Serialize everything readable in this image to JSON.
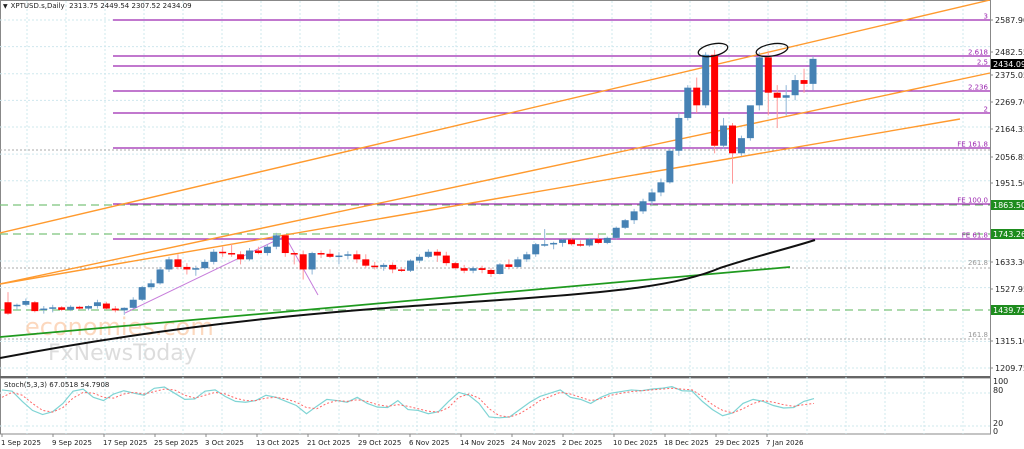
{
  "header": {
    "symbol": "XPTUSD.s,Daily",
    "ohlc": "2313.75 2449.54 2307.52 2434.09"
  },
  "stoch": {
    "label": "Stoch(5,3,3) 67.0518 54.7908",
    "levels": [
      "100",
      "80",
      "20",
      "0"
    ]
  },
  "watermark": {
    "line1": "economies.com",
    "line2": "FxNewsToday"
  },
  "colors": {
    "bull": "#4682b4",
    "bear": "#ff0000",
    "fib": "#9c27b0",
    "channel": "#ff9a2e",
    "green_trend": "#1f9a1f",
    "ma": "#111111",
    "tag_bg": "#1e8c1e",
    "price_tag_bg": "#000000",
    "stoch_main": "#7fd4d4",
    "stoch_signal": "#ff6666"
  },
  "chart_data": {
    "type": "candlestick",
    "title": "XPTUSD.s,Daily 2313.75 2449.54 2307.52 2434.09",
    "y_axis_ticks": [
      "2587.90",
      "2482.55",
      "2375.05",
      "2269.70",
      "2164.35",
      "2056.85",
      "1951.50",
      "1633.30",
      "1527.95",
      "1315.10",
      "1209.75"
    ],
    "price_tags": [
      {
        "value": "2434.09",
        "kind": "current"
      },
      {
        "value": "1863.50",
        "kind": "level"
      },
      {
        "value": "1743.26",
        "kind": "level"
      },
      {
        "value": "1439.72",
        "kind": "level"
      }
    ],
    "fib_levels": [
      {
        "label": "3",
        "price": 2600
      },
      {
        "label": "2.618",
        "price": 2470
      },
      {
        "label": "2.5",
        "price": 2434
      },
      {
        "label": "2.236",
        "price": 2330
      },
      {
        "label": "2",
        "price": 2250
      },
      {
        "label": "FE 161.8",
        "price": 2115
      },
      {
        "label": "FE 100.0",
        "price": 1895
      },
      {
        "label": "FE 61.8",
        "price": 1757
      }
    ],
    "grey_levels": [
      {
        "label": "261.8",
        "price": 1668
      },
      {
        "label": "161.8",
        "price": 1307
      }
    ],
    "x_labels": [
      "1 Sep 2025",
      "9 Sep 2025",
      "17 Sep 2025",
      "25 Sep 2025",
      "3 Oct 2025",
      "13 Oct 2025",
      "21 Oct 2025",
      "29 Oct 2025",
      "6 Nov 2025",
      "14 Nov 2025",
      "24 Nov 2025",
      "2 Dec 2025",
      "10 Dec 2025",
      "18 Dec 2025",
      "29 Dec 2025",
      "7 Jan 2026"
    ],
    "candles": [
      [
        1470,
        1510,
        1420,
        1425
      ],
      [
        1455,
        1465,
        1440,
        1460
      ],
      [
        1460,
        1485,
        1455,
        1475
      ],
      [
        1470,
        1475,
        1430,
        1435
      ],
      [
        1440,
        1455,
        1425,
        1445
      ],
      [
        1445,
        1460,
        1430,
        1450
      ],
      [
        1450,
        1455,
        1435,
        1440
      ],
      [
        1440,
        1458,
        1435,
        1452
      ],
      [
        1452,
        1456,
        1440,
        1445
      ],
      [
        1445,
        1458,
        1438,
        1455
      ],
      [
        1455,
        1480,
        1445,
        1470
      ],
      [
        1465,
        1472,
        1440,
        1445
      ],
      [
        1445,
        1455,
        1430,
        1438
      ],
      [
        1438,
        1450,
        1420,
        1448
      ],
      [
        1448,
        1490,
        1445,
        1480
      ],
      [
        1480,
        1535,
        1475,
        1530
      ],
      [
        1530,
        1560,
        1520,
        1545
      ],
      [
        1545,
        1610,
        1540,
        1600
      ],
      [
        1600,
        1650,
        1590,
        1640
      ],
      [
        1640,
        1660,
        1600,
        1610
      ],
      [
        1610,
        1625,
        1580,
        1600
      ],
      [
        1600,
        1615,
        1575,
        1605
      ],
      [
        1605,
        1640,
        1600,
        1630
      ],
      [
        1630,
        1680,
        1620,
        1670
      ],
      [
        1670,
        1690,
        1650,
        1665
      ],
      [
        1665,
        1700,
        1650,
        1660
      ],
      [
        1660,
        1672,
        1620,
        1640
      ],
      [
        1640,
        1685,
        1635,
        1675
      ],
      [
        1675,
        1690,
        1660,
        1665
      ],
      [
        1665,
        1700,
        1655,
        1690
      ],
      [
        1690,
        1745,
        1680,
        1735
      ],
      [
        1735,
        1740,
        1650,
        1665
      ],
      [
        1665,
        1670,
        1620,
        1660
      ],
      [
        1660,
        1675,
        1560,
        1600
      ],
      [
        1600,
        1670,
        1580,
        1665
      ],
      [
        1665,
        1675,
        1645,
        1662
      ],
      [
        1662,
        1680,
        1645,
        1650
      ],
      [
        1650,
        1668,
        1620,
        1655
      ],
      [
        1655,
        1672,
        1640,
        1660
      ],
      [
        1660,
        1675,
        1625,
        1640
      ],
      [
        1640,
        1660,
        1605,
        1615
      ],
      [
        1615,
        1630,
        1600,
        1610
      ],
      [
        1610,
        1625,
        1595,
        1618
      ],
      [
        1618,
        1628,
        1585,
        1600
      ],
      [
        1600,
        1610,
        1590,
        1595
      ],
      [
        1595,
        1640,
        1590,
        1635
      ],
      [
        1635,
        1660,
        1625,
        1650
      ],
      [
        1650,
        1680,
        1645,
        1670
      ],
      [
        1670,
        1680,
        1630,
        1655
      ],
      [
        1655,
        1670,
        1615,
        1625
      ],
      [
        1625,
        1630,
        1600,
        1605
      ],
      [
        1605,
        1618,
        1585,
        1595
      ],
      [
        1595,
        1612,
        1585,
        1605
      ],
      [
        1605,
        1615,
        1585,
        1598
      ],
      [
        1598,
        1605,
        1570,
        1582
      ],
      [
        1582,
        1625,
        1580,
        1620
      ],
      [
        1620,
        1640,
        1600,
        1610
      ],
      [
        1610,
        1650,
        1605,
        1640
      ],
      [
        1640,
        1670,
        1630,
        1660
      ],
      [
        1660,
        1705,
        1650,
        1700
      ],
      [
        1700,
        1760,
        1690,
        1700
      ],
      [
        1700,
        1710,
        1680,
        1705
      ],
      [
        1705,
        1720,
        1690,
        1718
      ],
      [
        1718,
        1725,
        1695,
        1700
      ],
      [
        1700,
        1715,
        1690,
        1695
      ],
      [
        1695,
        1725,
        1690,
        1720
      ],
      [
        1720,
        1740,
        1700,
        1705
      ],
      [
        1705,
        1730,
        1700,
        1725
      ],
      [
        1725,
        1770,
        1720,
        1765
      ],
      [
        1765,
        1800,
        1760,
        1795
      ],
      [
        1795,
        1840,
        1780,
        1830
      ],
      [
        1830,
        1880,
        1820,
        1870
      ],
      [
        1870,
        1920,
        1855,
        1905
      ],
      [
        1905,
        1960,
        1890,
        1945
      ],
      [
        1945,
        2080,
        1940,
        2070
      ],
      [
        2070,
        2220,
        2050,
        2200
      ],
      [
        2200,
        2330,
        2190,
        2320
      ],
      [
        2320,
        2360,
        2220,
        2250
      ],
      [
        2250,
        2460,
        2240,
        2450
      ],
      [
        2450,
        2470,
        2060,
        2090
      ],
      [
        2090,
        2200,
        2080,
        2170
      ],
      [
        2170,
        2180,
        1940,
        2060
      ],
      [
        2060,
        2130,
        2050,
        2120
      ],
      [
        2120,
        2240,
        2110,
        2250
      ],
      [
        2250,
        2460,
        2230,
        2440
      ],
      [
        2440,
        2465,
        2210,
        2300
      ],
      [
        2300,
        2330,
        2160,
        2280
      ],
      [
        2280,
        2330,
        2210,
        2290
      ],
      [
        2290,
        2370,
        2270,
        2350
      ],
      [
        2350,
        2395,
        2300,
        2335
      ],
      [
        2335,
        2445,
        2310,
        2434
      ]
    ],
    "moving_average": {
      "type": "line",
      "color": "black",
      "from": [
        0,
        1365
      ],
      "to": [
        815,
        1755
      ]
    },
    "stoch_main": [
      88,
      85,
      60,
      38,
      28,
      35,
      55,
      85,
      90,
      70,
      62,
      78,
      86,
      80,
      75,
      92,
      95,
      80,
      65,
      66,
      85,
      88,
      72,
      60,
      58,
      62,
      75,
      70,
      60,
      50,
      30,
      48,
      65,
      62,
      58,
      70,
      55,
      46,
      45,
      62,
      40,
      38,
      30,
      35,
      60,
      82,
      75,
      55,
      22,
      20,
      22,
      40,
      58,
      72,
      80,
      88,
      70,
      65,
      55,
      70,
      80,
      84,
      88,
      86,
      90,
      92,
      96,
      86,
      85,
      60,
      40,
      25,
      32,
      55,
      65,
      60,
      50,
      44,
      45,
      60,
      67
    ],
    "stoch_signal": [
      70,
      82,
      75,
      55,
      38,
      34,
      45,
      68,
      82,
      80,
      70,
      68,
      78,
      82,
      78,
      84,
      90,
      88,
      75,
      68,
      75,
      82,
      78,
      68,
      62,
      62,
      68,
      70,
      66,
      58,
      45,
      42,
      55,
      62,
      60,
      64,
      60,
      52,
      48,
      52,
      48,
      42,
      36,
      34,
      45,
      70,
      78,
      68,
      42,
      25,
      22,
      30,
      45,
      62,
      72,
      82,
      78,
      70,
      62,
      66,
      75,
      80,
      84,
      86,
      88,
      90,
      92,
      90,
      88,
      72,
      52,
      38,
      32,
      42,
      55,
      62,
      58,
      52,
      48,
      52,
      55
    ]
  }
}
